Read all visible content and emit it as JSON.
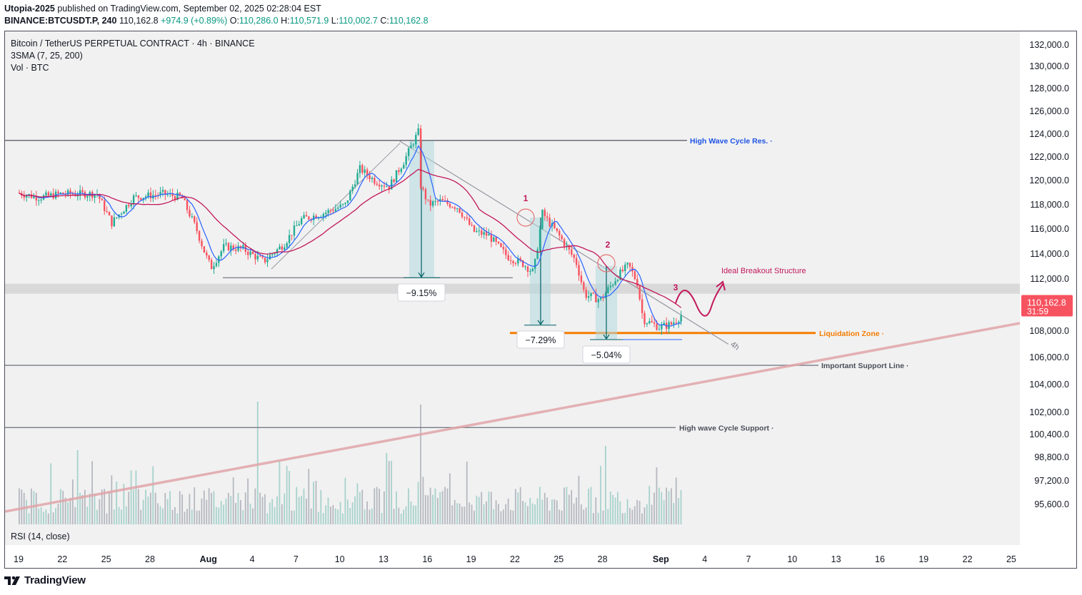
{
  "header": {
    "publisher": "Utopia-2025",
    "published_text": "published on TradingView.com, September 02, 2025 02:28:04 EST",
    "symbol": "BINANCE:BTCUSDT.P, 240",
    "last": "110,162.8",
    "change": "+974.9 (+0.89%)",
    "o_label": "O:",
    "o_value": "110,286.0",
    "h_label": "H:",
    "h_value": "110,571.9",
    "l_label": "L:",
    "l_value": "110,002.7",
    "c_label": "C:",
    "c_value": "110,162.8"
  },
  "legend": {
    "title": "Bitcoin / TetherUS PERPETUAL CONTRACT · 4h · BINANCE",
    "sma": "3SMA (7, 25, 200)",
    "vol": "Vol · BTC"
  },
  "rsi_label": "RSI (14, close)",
  "price_badge": {
    "value": "110,162.8",
    "countdown": "31:59",
    "color": "#f7525f"
  },
  "footer": {
    "brand": "TradingView"
  },
  "colors": {
    "up": "#089981",
    "down": "#f23645",
    "sma_fast": "#2962ff",
    "sma_mid": "#c2185b",
    "liquidation": "#f57c00",
    "annotation": "#c2185b",
    "resistance_text": "#1e53e5",
    "volume_up": "#a7d2cc",
    "volume_down": "#b5b8c0"
  },
  "chart_data": {
    "type": "candlestick",
    "symbol": "BTCUSDT.P",
    "timeframe": "4h",
    "y_scale": "log",
    "y_ticks": [
      132000.0,
      130000.0,
      128000.0,
      126000.0,
      124000.0,
      122000.0,
      120000.0,
      118000.0,
      116000.0,
      114000.0,
      112000.0,
      108000.0,
      106000.0,
      104000.0,
      102000.0,
      100400.0,
      98800.0,
      97200.0,
      95600.0
    ],
    "x_ticks": [
      "19",
      "22",
      "25",
      "28",
      "Aug",
      "4",
      "7",
      "10",
      "13",
      "16",
      "19",
      "22",
      "25",
      "28",
      "Sep",
      "4",
      "7",
      "10",
      "13",
      "16",
      "19",
      "22",
      "25"
    ],
    "key_prices": [
      {
        "day": 14.5,
        "price": 124400
      },
      {
        "day": 17.0,
        "price": 112600
      },
      {
        "day": 23.0,
        "price": 117300
      },
      {
        "day": 24.9,
        "price": 108700
      },
      {
        "day": 28.4,
        "price": 113200
      },
      {
        "day": 29.6,
        "price": 107400
      },
      {
        "day": 32.0,
        "price": 110162.8
      }
    ],
    "horizontal_levels": [
      {
        "label": "High Wave Cycle Res.",
        "price": 123450
      },
      {
        "label": "Liquidation Zone",
        "price": 107850
      },
      {
        "label": "Important Support Line",
        "price": 105420
      },
      {
        "label": "High wave Cycle Support",
        "price": 100900
      }
    ],
    "measurements": [
      {
        "label": "−9.15%",
        "from": 123400,
        "to": 112100
      },
      {
        "label": "−7.29%",
        "from": 116950,
        "to": 108450
      },
      {
        "label": "−5.04%",
        "from": 113050,
        "to": 107350
      }
    ],
    "markers": [
      "1",
      "2",
      "3"
    ],
    "annotations": {
      "breakout": "Ideal Breakout Structure",
      "trendline_tf": "4h"
    },
    "series": [
      {
        "name": "3SMA (7, 25, 200)",
        "parameters": [
          7,
          25,
          200
        ]
      },
      {
        "name": "Vol · BTC"
      }
    ]
  }
}
